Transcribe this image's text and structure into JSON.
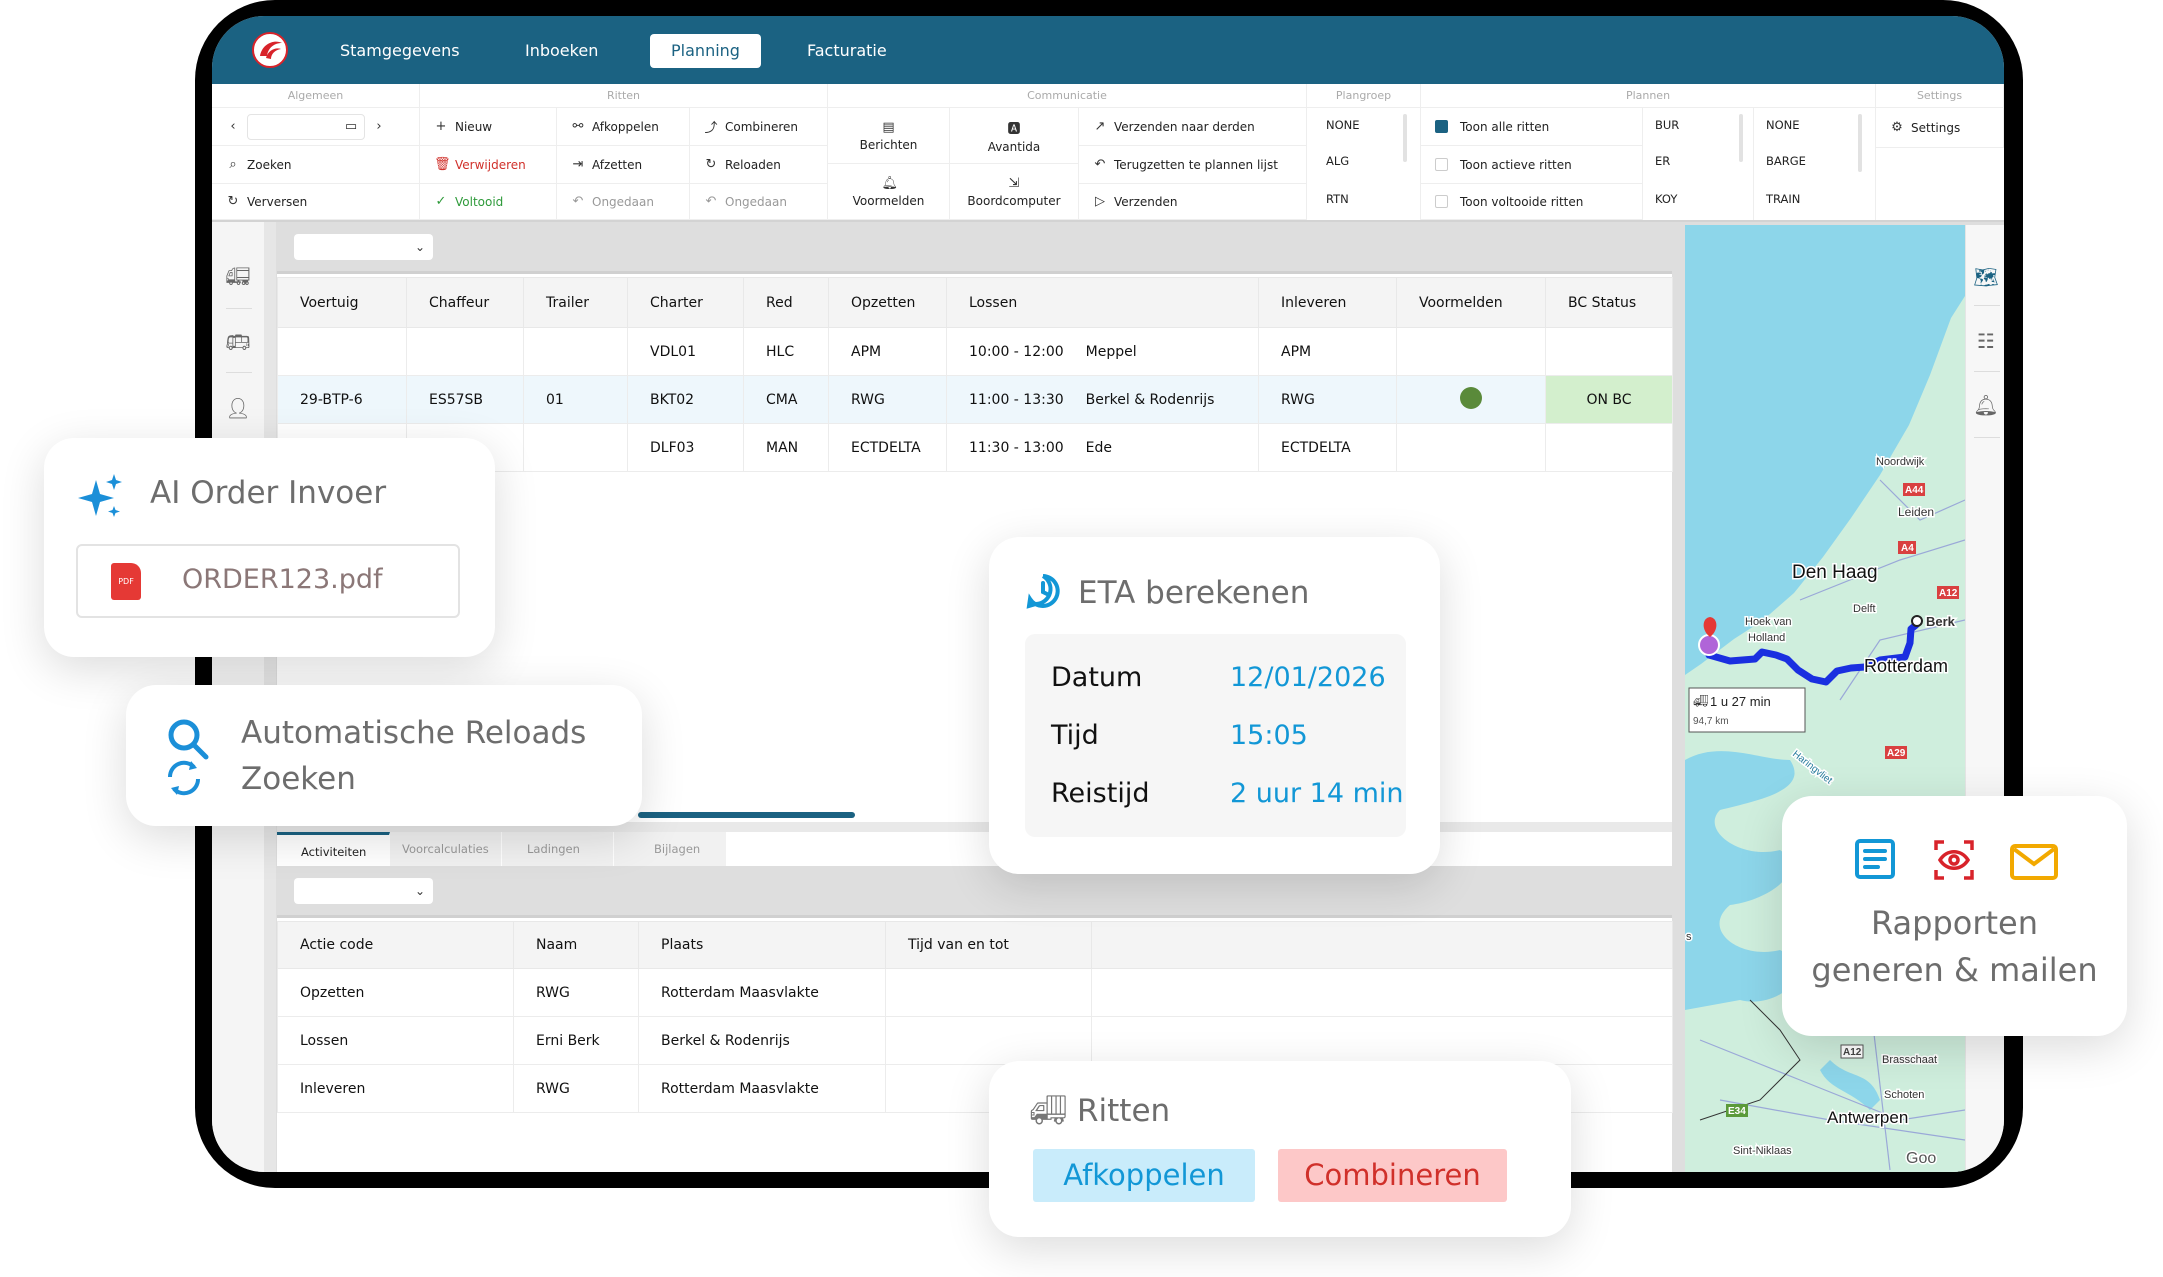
{
  "app": {
    "tabs": [
      {
        "label": "Stamgegevens"
      },
      {
        "label": "Inboeken"
      },
      {
        "label": "Planning",
        "active": true
      },
      {
        "label": "Facturatie"
      }
    ],
    "brand_color": "#1b6282"
  },
  "toolbar": {
    "groups": [
      "Algemeen",
      "Ritten",
      "Communicatie",
      "Plangroep",
      "Plannen",
      "Settings"
    ],
    "algemeen": {
      "date_value": "",
      "zoeken": "Zoeken",
      "verversen": "Verversen"
    },
    "ritten": {
      "nieuw": "Nieuw",
      "verwijderen": "Verwijderen",
      "voltooid": "Voltooid",
      "afkoppelen": "Afkoppelen",
      "afzetten": "Afzetten",
      "ongedaan_1": "Ongedaan",
      "combineren": "Combineren",
      "reloaden": "Reloaden",
      "ongedaan_2": "Ongedaan"
    },
    "communicatie": {
      "berichten": "Berichten",
      "voormelden": "Voormelden",
      "avantida": "Avantida",
      "boordcomputer": "Boordcomputer",
      "verzenden_derden": "Verzenden naar derden",
      "terugzetten": "Terugzetten te plannen lijst",
      "verzenden": "Verzenden"
    },
    "plangroep": [
      "NONE",
      "ALG",
      "RTN"
    ],
    "plannen": {
      "filters": [
        {
          "label": "Toon alle ritten",
          "checked": true
        },
        {
          "label": "Toon actieve ritten",
          "checked": false
        },
        {
          "label": "Toon voltooide ritten",
          "checked": false
        }
      ],
      "list_a": [
        "BUR",
        "ER",
        "KOY"
      ],
      "list_b": [
        "NONE",
        "BARGE",
        "TRAIN"
      ]
    },
    "settings": "Settings"
  },
  "trips_table": {
    "columns": [
      "Voertuig",
      "Chaffeur",
      "Trailer",
      "Charter",
      "Red",
      "Opzetten",
      "Lossen",
      "Inleveren",
      "Voormelden",
      "BC Status"
    ],
    "rows": [
      {
        "voertuig": "",
        "chaffeur": "",
        "trailer": "",
        "charter": "VDL01",
        "red": "HLC",
        "opzetten": "APM",
        "lossen_tijd": "10:00 - 12:00",
        "lossen_plaats": "Meppel",
        "inleveren": "APM",
        "voormelden": false,
        "bc_status": ""
      },
      {
        "voertuig": "29-BTP-6",
        "chaffeur": "ES57SB",
        "trailer": "01",
        "charter": "BKT02",
        "red": "CMA",
        "opzetten": "RWG",
        "lossen_tijd": "11:00 - 13:30",
        "lossen_plaats": "Berkel & Rodenrijs",
        "inleveren": "RWG",
        "voormelden": true,
        "bc_status": "ON BC",
        "selected": true
      },
      {
        "voertuig": "",
        "chaffeur": "",
        "trailer": "",
        "charter": "DLF03",
        "red": "MAN",
        "opzetten": "ECTDELTA",
        "lossen_tijd": "11:30 - 13:00",
        "lossen_plaats": "Ede",
        "inleveren": "ECTDELTA",
        "voormelden": false,
        "bc_status": ""
      }
    ],
    "voormelden_color": "#5a8a3a",
    "bc_status_bg": "#d3efcd"
  },
  "bottom_tabs": [
    {
      "label": "Activiteiten",
      "active": true
    },
    {
      "label": "Voorcalculaties"
    },
    {
      "label": "Ladingen"
    },
    {
      "label": "Bijlagen"
    }
  ],
  "activities_table": {
    "columns": [
      "Actie code",
      "Naam",
      "Plaats",
      "Tijd van en tot",
      ""
    ],
    "rows": [
      [
        "Opzetten",
        "RWG",
        "Rotterdam Maasvlakte",
        "",
        ""
      ],
      [
        "Lossen",
        "Erni Berk",
        "Berkel & Rodenrijs",
        "",
        ""
      ],
      [
        "Inleveren",
        "RWG",
        "Rotterdam Maasvlakte",
        "",
        ""
      ]
    ]
  },
  "map": {
    "labels": [
      "Noordwijk",
      "Leiden",
      "Den Haag",
      "Delft",
      "Hoek van",
      "Holland",
      "Berk",
      "Rotterdam",
      "Haringvliet",
      "Brasschaat",
      "Schoten",
      "Antwerpen",
      "Sint-Niklaas",
      "Goo",
      "s"
    ],
    "shields": [
      "A44",
      "A4",
      "A12",
      "A29",
      "A12",
      "E34"
    ],
    "route_duration": "1 u 27 min",
    "route_distance": "94,7 km",
    "sea_color": "#8dd6ea",
    "land_color": "#cfeedd",
    "route_color": "#1a2fe0"
  },
  "cards": {
    "ai_order": {
      "title": "AI Order Invoer",
      "file": "ORDER123.pdf",
      "file_badge": "PDF"
    },
    "reloads": {
      "line1": "Automatische Reloads",
      "line2": "Zoeken"
    },
    "eta": {
      "title": "ETA berekenen",
      "rows": [
        {
          "label": "Datum",
          "value": "12/01/2026"
        },
        {
          "label": "Tijd",
          "value": "15:05"
        },
        {
          "label": "Reistijd",
          "value": "2 uur 14 min"
        }
      ],
      "value_color": "#1297d6"
    },
    "ritten": {
      "title": "Ritten",
      "afkoppelen": "Afkoppelen",
      "combineren": "Combineren"
    },
    "rapporten": {
      "line1": "Rapporten",
      "line2": "generen & mailen"
    }
  }
}
